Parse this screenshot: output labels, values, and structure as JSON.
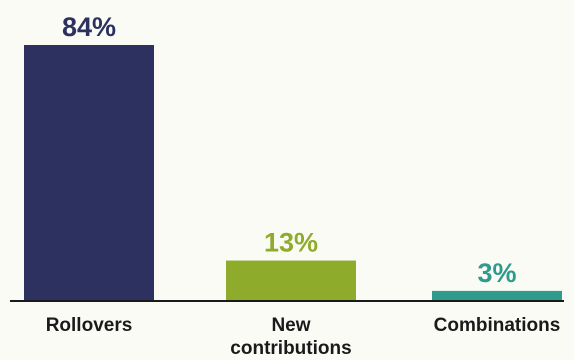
{
  "chart_data": {
    "type": "bar",
    "categories": [
      "Rollovers",
      "New contributions",
      "Combinations"
    ],
    "category_lines": [
      [
        "Rollovers"
      ],
      [
        "New",
        "contributions"
      ],
      [
        "Combinations"
      ]
    ],
    "values": [
      84,
      13,
      3
    ],
    "value_labels": [
      "84%",
      "13%",
      "3%"
    ],
    "colors": [
      "#2c3160",
      "#8fab2c",
      "#2f9b8c"
    ],
    "title": "",
    "xlabel": "",
    "ylabel": "",
    "ylim": [
      0,
      84
    ],
    "grid": false,
    "axis_color": "#1a1a1a"
  }
}
